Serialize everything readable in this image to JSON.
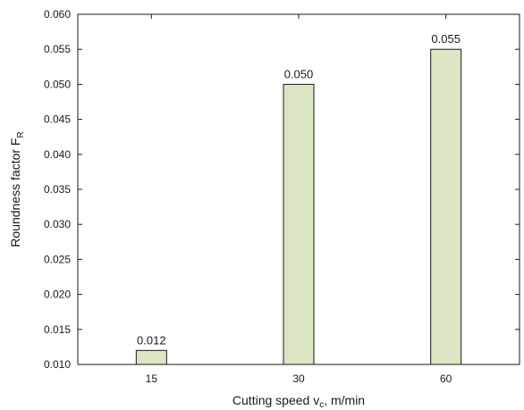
{
  "chart_data": {
    "type": "bar",
    "categories": [
      "15",
      "30",
      "60"
    ],
    "values": [
      0.012,
      0.05,
      0.055
    ],
    "data_labels": [
      "0.012",
      "0.050",
      "0.055"
    ],
    "xlabel": {
      "main": "Cutting speed v",
      "sub": "c",
      "tail": ", m/min"
    },
    "ylabel": {
      "main": "Roundness factor F",
      "sub": "R"
    },
    "ylim": [
      0.01,
      0.06
    ],
    "yticks": [
      "0.010",
      "0.015",
      "0.020",
      "0.025",
      "0.030",
      "0.035",
      "0.040",
      "0.045",
      "0.050",
      "0.055",
      "0.060"
    ],
    "grid": false,
    "colors": {
      "bar_fill": "#dbe6c4",
      "bar_stroke": "#1a1a1a",
      "axis": "#1a1a1a"
    }
  }
}
